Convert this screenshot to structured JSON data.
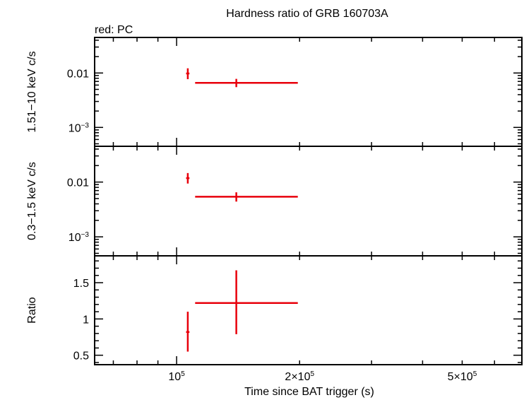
{
  "title": "Hardness ratio of GRB 160703A",
  "legend_note": "red: PC",
  "xlabel": "Time since BAT trigger (s)",
  "colors": {
    "series": "#e8000b",
    "axes": "#000000",
    "background": "#ffffff"
  },
  "chart_data": [
    {
      "type": "scatter",
      "panel": "top",
      "ylabel": "1.51−10 keV c/s",
      "xscale": "log",
      "yscale": "log",
      "xlim": [
        63000,
        700000
      ],
      "ylim": [
        0.00045,
        0.045
      ],
      "yticks": [
        {
          "value": 0.01,
          "label": "0.01"
        },
        {
          "value": 0.001,
          "label": "10",
          "sup": "−3"
        }
      ],
      "series": [
        {
          "points": [
            {
              "x": 106500,
              "xerr": [
                1000,
                1000
              ],
              "y": 0.0098,
              "yerr": [
                0.0021,
                0.0024
              ]
            },
            {
              "x": 140000,
              "xerr": [
                29000,
                58000
              ],
              "y": 0.0066,
              "yerr": [
                0.0011,
                0.0012
              ]
            }
          ]
        }
      ]
    },
    {
      "type": "scatter",
      "panel": "middle",
      "ylabel": "0.3−1.5 keV c/s",
      "xscale": "log",
      "yscale": "log",
      "xlim": [
        63000,
        700000
      ],
      "ylim": [
        0.00045,
        0.045
      ],
      "yticks": [
        {
          "value": 0.01,
          "label": "0.01"
        },
        {
          "value": 0.001,
          "label": "10",
          "sup": "−3"
        }
      ],
      "series": [
        {
          "points": [
            {
              "x": 106500,
              "xerr": [
                1000,
                1000
              ],
              "y": 0.0118,
              "yerr": [
                0.0024,
                0.0028
              ]
            },
            {
              "x": 140000,
              "xerr": [
                29000,
                58000
              ],
              "y": 0.0054,
              "yerr": [
                0.001,
                0.0011
              ]
            }
          ]
        }
      ]
    },
    {
      "type": "scatter",
      "panel": "bottom",
      "ylabel": "Ratio",
      "xscale": "log",
      "yscale": "linear",
      "xlim": [
        63000,
        700000
      ],
      "ylim": [
        0.37,
        1.87
      ],
      "yticks": [
        {
          "value": 0.5,
          "label": "0.5"
        },
        {
          "value": 1.0,
          "label": "1"
        },
        {
          "value": 1.5,
          "label": "1.5"
        }
      ],
      "series": [
        {
          "points": [
            {
              "x": 106500,
              "xerr": [
                1000,
                1000
              ],
              "y": 0.82,
              "yerr": [
                0.27,
                0.28
              ]
            },
            {
              "x": 140000,
              "xerr": [
                29000,
                58000
              ],
              "y": 1.22,
              "yerr": [
                0.43,
                0.45
              ]
            }
          ]
        }
      ]
    }
  ],
  "xticks": [
    {
      "value": 100000,
      "label": "10",
      "sup": "5"
    },
    {
      "value": 200000,
      "label": "2×10",
      "sup": "5"
    },
    {
      "value": 500000,
      "label": "5×10",
      "sup": "5"
    }
  ]
}
